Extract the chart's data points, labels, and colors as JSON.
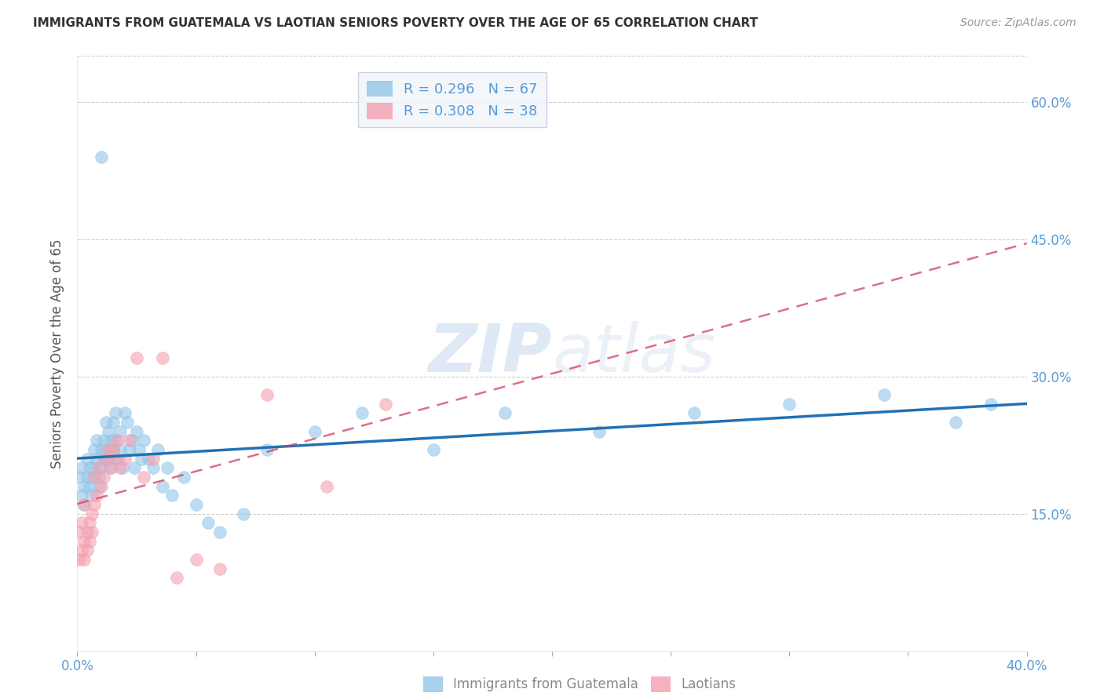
{
  "title": "IMMIGRANTS FROM GUATEMALA VS LAOTIAN SENIORS POVERTY OVER THE AGE OF 65 CORRELATION CHART",
  "source": "Source: ZipAtlas.com",
  "ylabel": "Seniors Poverty Over the Age of 65",
  "xmin": 0.0,
  "xmax": 0.4,
  "ymin": 0.0,
  "ymax": 0.65,
  "ytick_vals": [
    0.15,
    0.3,
    0.45,
    0.6
  ],
  "ytick_labels": [
    "15.0%",
    "30.0%",
    "45.0%",
    "60.0%"
  ],
  "xtick_positions": [
    0.0,
    0.4
  ],
  "xtick_labels": [
    "0.0%",
    "40.0%"
  ],
  "blue_color": "#93c6e8",
  "pink_color": "#f4a0b0",
  "trendline_blue_color": "#2171b5",
  "trendline_pink_color": "#d04060",
  "watermark_color": "#dce8f5",
  "grid_color": "#d0d0d0",
  "tick_color": "#5b9bd5",
  "title_color": "#333333",
  "source_color": "#999999",
  "ylabel_color": "#555555",
  "legend_edge_color": "#c0c8d8",
  "legend_bg_color": "#f0f4fa",
  "guatemala_x": [
    0.001,
    0.002,
    0.002,
    0.003,
    0.003,
    0.004,
    0.004,
    0.005,
    0.005,
    0.006,
    0.006,
    0.007,
    0.007,
    0.008,
    0.008,
    0.009,
    0.009,
    0.01,
    0.01,
    0.011,
    0.011,
    0.012,
    0.012,
    0.013,
    0.013,
    0.014,
    0.014,
    0.015,
    0.015,
    0.016,
    0.016,
    0.017,
    0.018,
    0.018,
    0.019,
    0.02,
    0.021,
    0.022,
    0.023,
    0.024,
    0.025,
    0.026,
    0.027,
    0.028,
    0.03,
    0.032,
    0.034,
    0.036,
    0.038,
    0.04,
    0.045,
    0.05,
    0.055,
    0.06,
    0.07,
    0.08,
    0.1,
    0.12,
    0.15,
    0.18,
    0.22,
    0.26,
    0.3,
    0.34,
    0.37,
    0.385,
    0.01
  ],
  "guatemala_y": [
    0.19,
    0.17,
    0.2,
    0.18,
    0.16,
    0.19,
    0.21,
    0.18,
    0.2,
    0.17,
    0.19,
    0.22,
    0.2,
    0.23,
    0.21,
    0.19,
    0.18,
    0.22,
    0.2,
    0.21,
    0.23,
    0.25,
    0.22,
    0.24,
    0.21,
    0.2,
    0.23,
    0.25,
    0.22,
    0.26,
    0.23,
    0.21,
    0.22,
    0.24,
    0.2,
    0.26,
    0.25,
    0.22,
    0.23,
    0.2,
    0.24,
    0.22,
    0.21,
    0.23,
    0.21,
    0.2,
    0.22,
    0.18,
    0.2,
    0.17,
    0.19,
    0.16,
    0.14,
    0.13,
    0.15,
    0.22,
    0.24,
    0.26,
    0.22,
    0.26,
    0.24,
    0.26,
    0.27,
    0.28,
    0.25,
    0.27,
    0.54
  ],
  "laotian_x": [
    0.001,
    0.001,
    0.002,
    0.002,
    0.003,
    0.003,
    0.003,
    0.004,
    0.004,
    0.005,
    0.005,
    0.006,
    0.006,
    0.007,
    0.007,
    0.008,
    0.009,
    0.01,
    0.011,
    0.012,
    0.013,
    0.014,
    0.015,
    0.016,
    0.017,
    0.018,
    0.02,
    0.022,
    0.025,
    0.028,
    0.032,
    0.036,
    0.042,
    0.05,
    0.06,
    0.08,
    0.105,
    0.13
  ],
  "laotian_y": [
    0.13,
    0.1,
    0.11,
    0.14,
    0.12,
    0.1,
    0.16,
    0.13,
    0.11,
    0.14,
    0.12,
    0.15,
    0.13,
    0.19,
    0.16,
    0.17,
    0.2,
    0.18,
    0.19,
    0.21,
    0.22,
    0.2,
    0.22,
    0.21,
    0.23,
    0.2,
    0.21,
    0.23,
    0.32,
    0.19,
    0.21,
    0.32,
    0.08,
    0.1,
    0.09,
    0.28,
    0.18,
    0.27
  ]
}
